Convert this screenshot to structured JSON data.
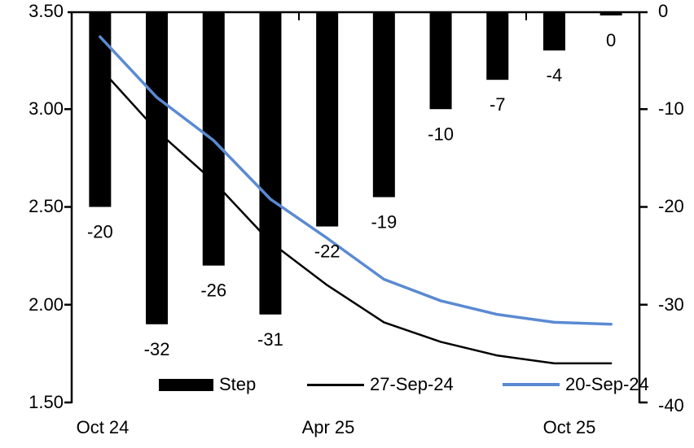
{
  "chart_data": {
    "type": "bar+line",
    "num_slots": 10,
    "x_axis": {
      "labels": [
        {
          "slot": 0,
          "text": "Oct 24"
        },
        {
          "slot": 4,
          "text": "Apr 25"
        },
        {
          "slot": 8,
          "text": "Oct 25"
        }
      ]
    },
    "left_axis": {
      "range_min": 1.5,
      "range_max": 3.5,
      "tick_labels": [
        "3.50",
        "3.00",
        "2.50",
        "2.00",
        "1.50"
      ]
    },
    "right_axis": {
      "range_top": 0,
      "range_bottom": -40,
      "tick_labels": [
        "0",
        "-10",
        "-20",
        "-30",
        "-40"
      ]
    },
    "bars": {
      "name": "Step",
      "axis": "right",
      "color": "#000000",
      "values": [
        -20,
        -32,
        -26,
        -31,
        -22,
        -19,
        -10,
        -7,
        -4,
        0
      ],
      "labels": [
        "-20",
        "-32",
        "-26",
        "-31",
        "-22",
        "-19",
        "-10",
        "-7",
        "-4",
        "0"
      ]
    },
    "series": [
      {
        "name": "27-Sep-24",
        "axis": "left",
        "color": "#000000",
        "stroke_width": 2.5,
        "values": [
          3.21,
          2.89,
          2.63,
          2.32,
          2.1,
          1.91,
          1.81,
          1.74,
          1.7,
          1.7
        ]
      },
      {
        "name": "20-Sep-24",
        "axis": "left",
        "color": "#5A8AD2",
        "stroke_width": 3.5,
        "values": [
          3.37,
          3.06,
          2.84,
          2.54,
          2.34,
          2.13,
          2.02,
          1.95,
          1.91,
          1.9
        ]
      }
    ],
    "legend": {
      "position": "bottom",
      "entries": [
        {
          "label": "Step",
          "type": "bar",
          "color": "#000000"
        },
        {
          "label": "27-Sep-24",
          "type": "line",
          "color": "#000000"
        },
        {
          "label": "20-Sep-24",
          "type": "line",
          "color": "#5A8AD2"
        }
      ]
    }
  }
}
